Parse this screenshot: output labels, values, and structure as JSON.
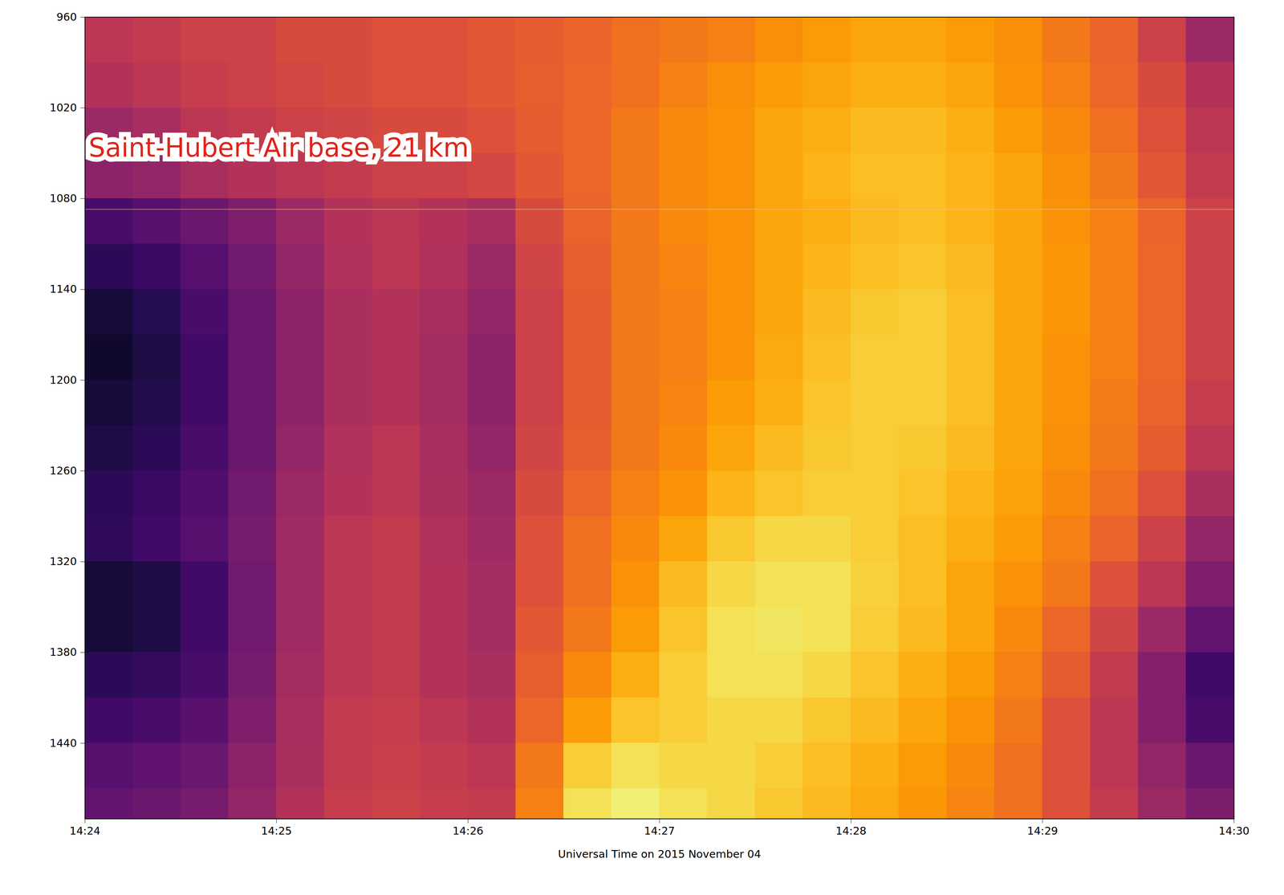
{
  "chart_data": {
    "type": "heatmap",
    "xlabel": "Universal Time on 2015 November 04",
    "color": "inferno",
    "grid": false,
    "xlim": [
      "14:24:00",
      "14:30:00"
    ],
    "xticks": [
      {
        "value": "14:24:00",
        "label": "14:24"
      },
      {
        "value": "14:25:00",
        "label": "14:25"
      },
      {
        "value": "14:26:00",
        "label": "14:26"
      },
      {
        "value": "14:27:00",
        "label": "14:27"
      },
      {
        "value": "14:28:00",
        "label": "14:28"
      },
      {
        "value": "14:29:00",
        "label": "14:29"
      },
      {
        "value": "14:30:00",
        "label": "14:30"
      }
    ],
    "ylim": [
      960,
      1490
    ],
    "yticks": [
      960,
      1020,
      1080,
      1140,
      1200,
      1260,
      1320,
      1380,
      1440
    ],
    "annotations": [
      {
        "text": "Saint-Hubert Air base, 21 km",
        "y": 1087
      }
    ],
    "zlim": [
      0,
      1
    ],
    "x_bins": [
      "14:24:00",
      "14:24:15",
      "14:24:30",
      "14:24:45",
      "14:25:00",
      "14:25:15",
      "14:25:30",
      "14:25:45",
      "14:26:00",
      "14:26:15",
      "14:26:30",
      "14:26:45",
      "14:27:00",
      "14:27:15",
      "14:27:30",
      "14:27:45",
      "14:28:00",
      "14:28:15",
      "14:28:30",
      "14:28:45",
      "14:29:00",
      "14:29:15",
      "14:29:30",
      "14:29:45",
      "14:30:00"
    ],
    "y_bins": [
      960,
      990,
      1020,
      1050,
      1080,
      1110,
      1140,
      1170,
      1200,
      1230,
      1260,
      1290,
      1320,
      1350,
      1380,
      1410,
      1440,
      1470,
      1500
    ],
    "z": [
      [
        0.5,
        0.52,
        0.55,
        0.55,
        0.58,
        0.58,
        0.6,
        0.6,
        0.62,
        0.63,
        0.65,
        0.68,
        0.7,
        0.72,
        0.75,
        0.78,
        0.8,
        0.8,
        0.78,
        0.75,
        0.7,
        0.65,
        0.55,
        0.42
      ],
      [
        0.48,
        0.5,
        0.53,
        0.55,
        0.57,
        0.58,
        0.6,
        0.6,
        0.62,
        0.64,
        0.66,
        0.68,
        0.72,
        0.75,
        0.78,
        0.8,
        0.82,
        0.82,
        0.8,
        0.76,
        0.72,
        0.66,
        0.58,
        0.48
      ],
      [
        0.42,
        0.45,
        0.5,
        0.52,
        0.55,
        0.56,
        0.58,
        0.58,
        0.6,
        0.63,
        0.66,
        0.7,
        0.74,
        0.76,
        0.8,
        0.82,
        0.84,
        0.84,
        0.82,
        0.78,
        0.74,
        0.68,
        0.6,
        0.5
      ],
      [
        0.38,
        0.4,
        0.45,
        0.48,
        0.5,
        0.52,
        0.55,
        0.55,
        0.57,
        0.62,
        0.66,
        0.7,
        0.74,
        0.76,
        0.8,
        0.83,
        0.85,
        0.85,
        0.83,
        0.8,
        0.75,
        0.7,
        0.62,
        0.52
      ],
      [
        0.22,
        0.25,
        0.3,
        0.35,
        0.42,
        0.48,
        0.5,
        0.48,
        0.45,
        0.58,
        0.65,
        0.7,
        0.74,
        0.76,
        0.8,
        0.82,
        0.84,
        0.85,
        0.83,
        0.8,
        0.76,
        0.72,
        0.65,
        0.55
      ],
      [
        0.15,
        0.18,
        0.25,
        0.32,
        0.4,
        0.47,
        0.5,
        0.47,
        0.42,
        0.56,
        0.64,
        0.7,
        0.73,
        0.76,
        0.8,
        0.83,
        0.85,
        0.86,
        0.84,
        0.8,
        0.77,
        0.72,
        0.66,
        0.55
      ],
      [
        0.1,
        0.14,
        0.22,
        0.3,
        0.38,
        0.46,
        0.48,
        0.45,
        0.4,
        0.55,
        0.63,
        0.7,
        0.72,
        0.76,
        0.8,
        0.84,
        0.87,
        0.88,
        0.85,
        0.8,
        0.77,
        0.72,
        0.66,
        0.55
      ],
      [
        0.08,
        0.12,
        0.2,
        0.3,
        0.38,
        0.46,
        0.48,
        0.44,
        0.38,
        0.55,
        0.63,
        0.7,
        0.72,
        0.76,
        0.81,
        0.85,
        0.88,
        0.88,
        0.85,
        0.8,
        0.76,
        0.72,
        0.66,
        0.55
      ],
      [
        0.1,
        0.13,
        0.2,
        0.3,
        0.38,
        0.46,
        0.48,
        0.44,
        0.38,
        0.55,
        0.63,
        0.7,
        0.73,
        0.78,
        0.82,
        0.86,
        0.88,
        0.88,
        0.85,
        0.8,
        0.76,
        0.71,
        0.65,
        0.53
      ],
      [
        0.12,
        0.15,
        0.22,
        0.3,
        0.4,
        0.47,
        0.5,
        0.45,
        0.4,
        0.56,
        0.64,
        0.7,
        0.74,
        0.8,
        0.84,
        0.87,
        0.88,
        0.87,
        0.84,
        0.8,
        0.75,
        0.7,
        0.63,
        0.5
      ],
      [
        0.15,
        0.18,
        0.24,
        0.32,
        0.42,
        0.48,
        0.5,
        0.46,
        0.42,
        0.58,
        0.66,
        0.72,
        0.76,
        0.83,
        0.86,
        0.88,
        0.88,
        0.86,
        0.83,
        0.79,
        0.74,
        0.68,
        0.6,
        0.46
      ],
      [
        0.16,
        0.2,
        0.25,
        0.33,
        0.43,
        0.5,
        0.52,
        0.47,
        0.43,
        0.6,
        0.68,
        0.74,
        0.8,
        0.87,
        0.9,
        0.9,
        0.88,
        0.85,
        0.82,
        0.78,
        0.72,
        0.65,
        0.55,
        0.4
      ],
      [
        0.1,
        0.12,
        0.2,
        0.32,
        0.43,
        0.5,
        0.52,
        0.48,
        0.44,
        0.6,
        0.68,
        0.76,
        0.84,
        0.9,
        0.92,
        0.92,
        0.89,
        0.85,
        0.8,
        0.76,
        0.7,
        0.6,
        0.5,
        0.35
      ],
      [
        0.1,
        0.12,
        0.2,
        0.32,
        0.43,
        0.5,
        0.52,
        0.48,
        0.44,
        0.62,
        0.7,
        0.78,
        0.86,
        0.92,
        0.93,
        0.92,
        0.88,
        0.84,
        0.8,
        0.74,
        0.66,
        0.56,
        0.42,
        0.28
      ],
      [
        0.15,
        0.17,
        0.22,
        0.33,
        0.44,
        0.5,
        0.52,
        0.48,
        0.46,
        0.64,
        0.74,
        0.82,
        0.88,
        0.92,
        0.92,
        0.9,
        0.86,
        0.82,
        0.78,
        0.72,
        0.63,
        0.52,
        0.36,
        0.2
      ],
      [
        0.2,
        0.22,
        0.26,
        0.35,
        0.45,
        0.52,
        0.53,
        0.5,
        0.48,
        0.66,
        0.78,
        0.86,
        0.88,
        0.9,
        0.9,
        0.87,
        0.84,
        0.8,
        0.76,
        0.7,
        0.6,
        0.5,
        0.36,
        0.22
      ],
      [
        0.25,
        0.27,
        0.3,
        0.38,
        0.46,
        0.52,
        0.54,
        0.52,
        0.5,
        0.7,
        0.88,
        0.92,
        0.9,
        0.9,
        0.88,
        0.85,
        0.82,
        0.78,
        0.74,
        0.68,
        0.6,
        0.5,
        0.4,
        0.3
      ],
      [
        0.28,
        0.3,
        0.33,
        0.4,
        0.48,
        0.53,
        0.55,
        0.53,
        0.52,
        0.72,
        0.92,
        0.95,
        0.92,
        0.9,
        0.87,
        0.84,
        0.81,
        0.77,
        0.73,
        0.68,
        0.6,
        0.52,
        0.42,
        0.34
      ]
    ]
  }
}
